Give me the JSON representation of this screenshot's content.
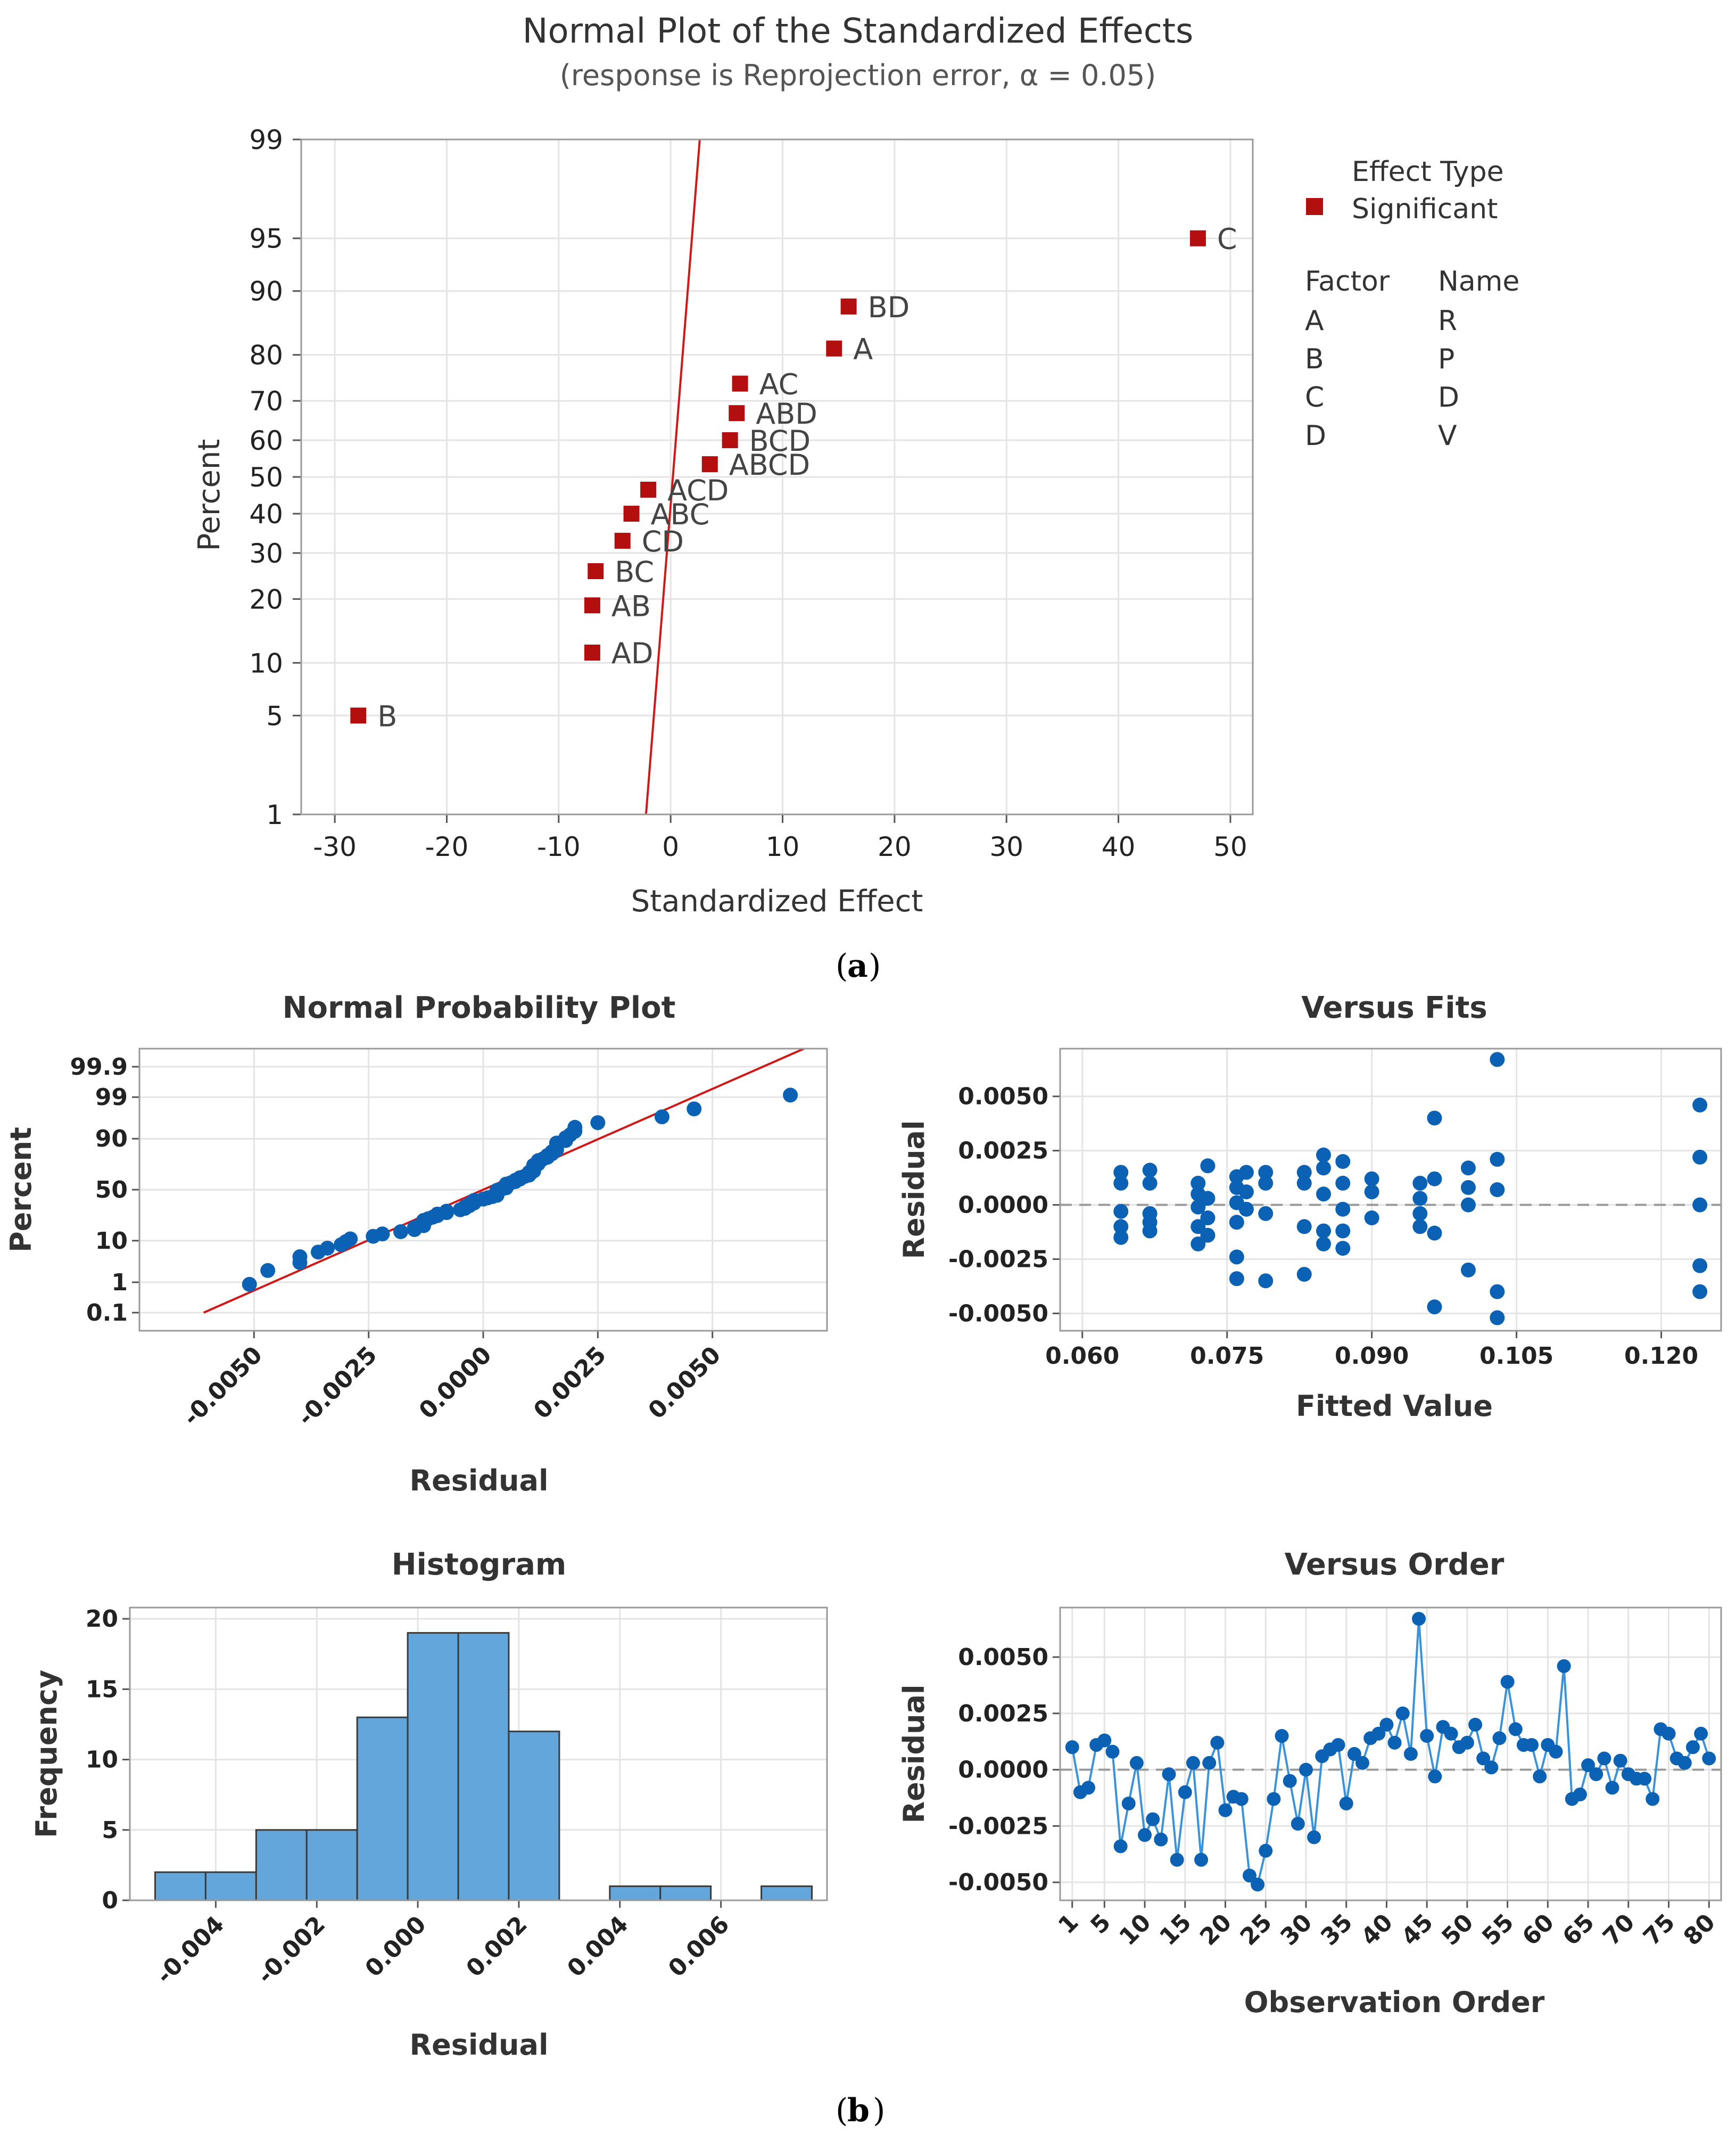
{
  "colors": {
    "significant": "#b30f0f",
    "fit_line": "#d01818",
    "residual_point": "#0b62b5",
    "histogram_bar": "#63a6dc",
    "order_line": "#3a93d8"
  },
  "panel_a": {
    "caption": "a",
    "chart_data": {
      "type": "scatter",
      "title": "Normal Plot of the Standardized Effects",
      "subtitle": "(response is Reprojection error, α = 0.05)",
      "xlabel": "Standardized Effect",
      "ylabel": "Percent",
      "xlim": [
        -33,
        52
      ],
      "xticks": [
        -30,
        -20,
        -10,
        0,
        10,
        20,
        30,
        40,
        50
      ],
      "yticks": [
        1,
        5,
        10,
        20,
        30,
        40,
        50,
        60,
        70,
        80,
        90,
        95,
        99
      ],
      "points": [
        {
          "label": "B",
          "x": -27.9,
          "p": 5
        },
        {
          "label": "AD",
          "x": -7.0,
          "p": 11.3
        },
        {
          "label": "AB",
          "x": -7.0,
          "p": 18.8
        },
        {
          "label": "BC",
          "x": -6.7,
          "p": 25.8
        },
        {
          "label": "CD",
          "x": -4.3,
          "p": 33.0
        },
        {
          "label": "ABC",
          "x": -3.5,
          "p": 40.0
        },
        {
          "label": "ACD",
          "x": -2.0,
          "p": 46.5
        },
        {
          "label": "ABCD",
          "x": 3.5,
          "p": 53.5
        },
        {
          "label": "BCD",
          "x": 5.3,
          "p": 60.0
        },
        {
          "label": "ABD",
          "x": 5.9,
          "p": 67.0
        },
        {
          "label": "AC",
          "x": 6.2,
          "p": 74.0
        },
        {
          "label": "A",
          "x": 14.6,
          "p": 81.2
        },
        {
          "label": "BD",
          "x": 15.9,
          "p": 88.0
        },
        {
          "label": "C",
          "x": 47.1,
          "p": 95.0
        }
      ],
      "fit_line": {
        "x_at_p1": -2.2,
        "x_at_p99": 2.6
      },
      "legend": {
        "title": "Effect Type",
        "entries": [
          "Significant"
        ],
        "factor_header": "Factor",
        "name_header": "Name",
        "factors": [
          {
            "factor": "A",
            "name": "R"
          },
          {
            "factor": "B",
            "name": "P"
          },
          {
            "factor": "C",
            "name": "D"
          },
          {
            "factor": "D",
            "name": "V"
          }
        ]
      }
    }
  },
  "panel_b": {
    "caption": "b",
    "normal_probability": {
      "chart_data": {
        "type": "scatter",
        "title": "Normal Probability Plot",
        "xlabel": "Residual",
        "ylabel": "Percent",
        "xlim": [
          -0.0075,
          0.0075
        ],
        "xticks": [
          -0.005,
          -0.0025,
          0.0,
          0.0025,
          0.005
        ],
        "xtick_labels": [
          "-0.0050",
          "-0.0025",
          "0.0000",
          "0.0025",
          "0.0050"
        ],
        "yticks": [
          0.1,
          1,
          10,
          50,
          90,
          99,
          99.9
        ],
        "ytick_labels": [
          "0.1",
          "1",
          "10",
          "50",
          "90",
          "99",
          "99.9"
        ],
        "fit_line": {
          "x_at_p01": -0.0061,
          "x_at_p999": 0.0061
        }
      }
    },
    "versus_fits": {
      "chart_data": {
        "type": "scatter",
        "title": "Versus Fits",
        "xlabel": "Fitted Value",
        "ylabel": "Residual",
        "xlim": [
          0.0577,
          0.1262
        ],
        "ylim": [
          -0.0058,
          0.0072
        ],
        "xticks": [
          0.06,
          0.075,
          0.09,
          0.105,
          0.12
        ],
        "xtick_labels": [
          "0.060",
          "0.075",
          "0.090",
          "0.105",
          "0.120"
        ],
        "yticks": [
          -0.005,
          -0.0025,
          0.0,
          0.0025,
          0.005
        ],
        "ytick_labels": [
          "-0.0050",
          "-0.0025",
          "0.0000",
          "0.0025",
          "0.0050"
        ],
        "points": [
          [
            0.064,
            0.0015
          ],
          [
            0.064,
            0.001
          ],
          [
            0.064,
            -0.0003
          ],
          [
            0.064,
            -0.001
          ],
          [
            0.064,
            -0.0015
          ],
          [
            0.067,
            0.0016
          ],
          [
            0.067,
            0.001
          ],
          [
            0.067,
            -0.0004
          ],
          [
            0.067,
            -0.0008
          ],
          [
            0.067,
            -0.0012
          ],
          [
            0.072,
            0.001
          ],
          [
            0.072,
            0.0005
          ],
          [
            0.072,
            -0.0001
          ],
          [
            0.072,
            -0.001
          ],
          [
            0.072,
            -0.0018
          ],
          [
            0.073,
            0.0018
          ],
          [
            0.073,
            0.0003
          ],
          [
            0.073,
            -0.0006
          ],
          [
            0.073,
            -0.0014
          ],
          [
            0.076,
            0.0013
          ],
          [
            0.076,
            0.0008
          ],
          [
            0.076,
            0.0001
          ],
          [
            0.076,
            -0.0008
          ],
          [
            0.076,
            -0.0024
          ],
          [
            0.076,
            -0.0034
          ],
          [
            0.077,
            0.0015
          ],
          [
            0.077,
            0.0006
          ],
          [
            0.077,
            -0.0002
          ],
          [
            0.079,
            0.0015
          ],
          [
            0.079,
            0.001
          ],
          [
            0.079,
            -0.0004
          ],
          [
            0.079,
            -0.0035
          ],
          [
            0.083,
            0.0015
          ],
          [
            0.083,
            0.001
          ],
          [
            0.083,
            -0.001
          ],
          [
            0.083,
            -0.0032
          ],
          [
            0.085,
            0.0023
          ],
          [
            0.085,
            0.0017
          ],
          [
            0.085,
            0.0005
          ],
          [
            0.085,
            -0.0012
          ],
          [
            0.085,
            -0.0018
          ],
          [
            0.087,
            0.002
          ],
          [
            0.087,
            0.001
          ],
          [
            0.087,
            -0.0002
          ],
          [
            0.087,
            -0.0012
          ],
          [
            0.087,
            -0.002
          ],
          [
            0.09,
            0.0012
          ],
          [
            0.09,
            0.0006
          ],
          [
            0.09,
            -0.0006
          ],
          [
            0.095,
            0.001
          ],
          [
            0.095,
            0.0003
          ],
          [
            0.095,
            -0.0004
          ],
          [
            0.095,
            -0.001
          ],
          [
            0.0965,
            0.004
          ],
          [
            0.0965,
            0.0012
          ],
          [
            0.0965,
            -0.0013
          ],
          [
            0.0965,
            -0.0047
          ],
          [
            0.1,
            0.0017
          ],
          [
            0.1,
            0.0008
          ],
          [
            0.1,
            0.0
          ],
          [
            0.1,
            -0.003
          ],
          [
            0.103,
            0.0067
          ],
          [
            0.103,
            0.0021
          ],
          [
            0.103,
            0.0007
          ],
          [
            0.103,
            -0.004
          ],
          [
            0.103,
            -0.0052
          ],
          [
            0.124,
            0.0046
          ],
          [
            0.124,
            0.0022
          ],
          [
            0.124,
            0.0
          ],
          [
            0.124,
            -0.0028
          ],
          [
            0.124,
            -0.004
          ]
        ]
      }
    },
    "histogram": {
      "chart_data": {
        "type": "bar",
        "title": "Histogram",
        "xlabel": "Residual",
        "ylabel": "Frequency",
        "ylim": [
          0,
          20.8
        ],
        "yticks": [
          0,
          5,
          10,
          15,
          20
        ],
        "xticks": [
          -0.004,
          -0.002,
          0.0,
          0.002,
          0.004,
          0.006
        ],
        "xtick_labels": [
          "-0.004",
          "-0.002",
          "0.000",
          "0.002",
          "0.004",
          "0.006"
        ],
        "bin_edges": [
          -0.0052,
          -0.0042,
          -0.0032,
          -0.0022,
          -0.0012,
          -0.0002,
          0.0008,
          0.0018,
          0.0028,
          0.0038,
          0.0048,
          0.0058,
          0.0068,
          0.0078
        ],
        "values": [
          2,
          2,
          5,
          5,
          13,
          19,
          19,
          12,
          0,
          1,
          1,
          0,
          1
        ],
        "xlim": [
          -0.0057,
          0.0081
        ]
      }
    },
    "versus_order": {
      "chart_data": {
        "type": "line",
        "title": "Versus Order",
        "xlabel": "Observation Order",
        "ylabel": "Residual",
        "xlim": [
          -0.5,
          81.5
        ],
        "ylim": [
          -0.0058,
          0.0072
        ],
        "xticks": [
          1,
          5,
          10,
          15,
          20,
          25,
          30,
          35,
          40,
          45,
          50,
          55,
          60,
          65,
          70,
          75,
          80
        ],
        "xtick_labels": [
          "1",
          "5",
          "10",
          "15",
          "20",
          "25",
          "30",
          "35",
          "40",
          "45",
          "50",
          "55",
          "60",
          "65",
          "70",
          "75",
          "80"
        ],
        "yticks": [
          -0.005,
          -0.0025,
          0.0,
          0.0025,
          0.005
        ],
        "ytick_labels": [
          "-0.0050",
          "-0.0025",
          "0.0000",
          "0.0025",
          "0.0050"
        ],
        "values": [
          0.001,
          -0.001,
          -0.0008,
          0.0011,
          0.0013,
          0.0008,
          -0.0034,
          -0.0015,
          0.0003,
          -0.0029,
          -0.0022,
          -0.0031,
          -0.0002,
          -0.004,
          -0.001,
          0.0003,
          -0.004,
          0.0003,
          0.0012,
          -0.0018,
          -0.0012,
          -0.0013,
          -0.0047,
          -0.0051,
          -0.0036,
          -0.0013,
          0.0015,
          -0.0005,
          -0.0024,
          0.0,
          -0.003,
          0.0006,
          0.0009,
          0.0011,
          -0.0015,
          0.0007,
          0.0003,
          0.0014,
          0.0016,
          0.002,
          0.0012,
          0.0025,
          0.0007,
          0.0067,
          0.0015,
          -0.0003,
          0.0019,
          0.0016,
          0.001,
          0.0012,
          0.002,
          0.0005,
          0.0001,
          0.0014,
          0.0039,
          0.0018,
          0.0011,
          0.0011,
          -0.0003,
          0.0011,
          0.0008,
          0.0046,
          -0.0013,
          -0.0011,
          0.0002,
          -0.0002,
          0.0005,
          -0.0008,
          0.0004,
          -0.0002,
          -0.0004,
          -0.0004,
          -0.0013,
          0.0018,
          0.0016,
          0.0005,
          0.0003,
          0.001,
          0.0016,
          0.0005
        ]
      }
    }
  }
}
